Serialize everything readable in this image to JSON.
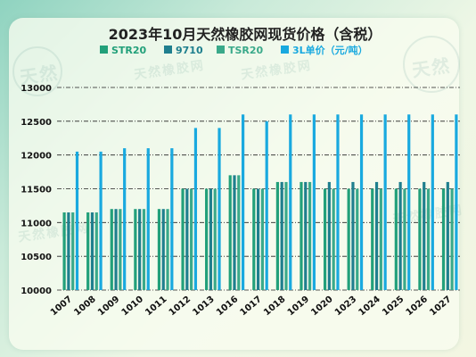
{
  "chart_data": {
    "type": "bar",
    "title": "2023年10月天然橡胶网现货价格（含税）",
    "xlabel": "",
    "ylabel": "",
    "ylim": [
      10000,
      13000
    ],
    "yticks": [
      10000,
      10500,
      11000,
      11500,
      12000,
      12500,
      13000
    ],
    "grid": true,
    "legend_position": "top",
    "categories": [
      "1007",
      "1008",
      "1009",
      "1010",
      "1011",
      "1012",
      "1013",
      "1016",
      "1017",
      "1018",
      "1019",
      "1020",
      "1023",
      "1024",
      "1025",
      "1026",
      "1027"
    ],
    "series": [
      {
        "name": "STR20",
        "color": "#22a07a",
        "values": [
          11150,
          11150,
          11200,
          11200,
          11200,
          11500,
          11500,
          11700,
          11500,
          11600,
          11600,
          11500,
          11500,
          11500,
          11500,
          11500,
          11500
        ]
      },
      {
        "name": "9710",
        "color": "#1f7f8e",
        "values": [
          11150,
          11150,
          11200,
          11200,
          11200,
          11500,
          11500,
          11700,
          11500,
          11600,
          11600,
          11600,
          11600,
          11600,
          11600,
          11600,
          11600
        ]
      },
      {
        "name": "TSR20",
        "color": "#3aa98a",
        "values": [
          11150,
          11150,
          11200,
          11200,
          11200,
          11500,
          11500,
          11700,
          11500,
          11600,
          11600,
          11500,
          11500,
          11500,
          11500,
          11500,
          11500
        ]
      },
      {
        "name": "3L单价（元/吨）",
        "color": "#19a9df",
        "values": [
          12050,
          12050,
          12100,
          12100,
          12100,
          12400,
          12400,
          12600,
          12500,
          12600,
          12600,
          12600,
          12600,
          12600,
          12600,
          12600,
          12600
        ]
      }
    ]
  }
}
